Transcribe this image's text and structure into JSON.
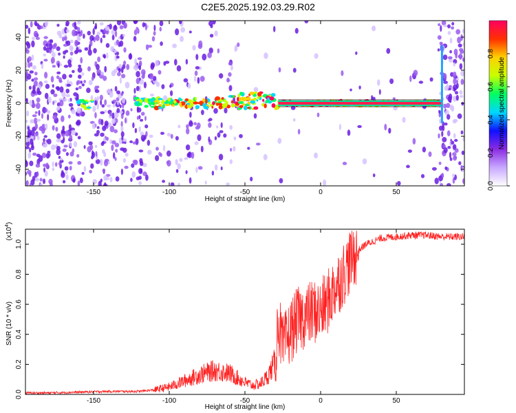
{
  "title": "C2E5.2025.192.03.29.R02",
  "chart_data": [
    {
      "type": "heatmap",
      "xlabel": "Height of straight line (km)",
      "ylabel": "Frequency (Hz)",
      "xlim": [
        -195,
        95
      ],
      "ylim": [
        -50,
        50
      ],
      "x_ticks": [
        -150,
        -100,
        -50,
        0,
        50
      ],
      "y_ticks": [
        -40,
        -20,
        0,
        20,
        40
      ],
      "colorbar": {
        "label": "Normalized spectral amplitude",
        "range": [
          0,
          1
        ],
        "ticks": [
          0.0,
          0.2,
          0.4,
          0.6,
          0.8
        ],
        "tick_labels": [
          "0.0",
          "0.2",
          "0.4",
          "0.6",
          "0.8"
        ],
        "colors": [
          "#ffffff",
          "#c8a8ff",
          "#8a2be2",
          "#1010ff",
          "#00d8ff",
          "#00ff60",
          "#c8ff00",
          "#ffd000",
          "#ff3000",
          "#ff0060"
        ]
      },
      "signal_line": {
        "x_start": -28,
        "x_end": 80,
        "frequency": 0
      },
      "grid": false
    },
    {
      "type": "line",
      "xlabel": "Height of straight line (km)",
      "ylabel": "SNR (10 * v/v)",
      "y_scale_label": "(x10^4)",
      "xlim": [
        -195,
        95
      ],
      "ylim": [
        0,
        1.1
      ],
      "x_ticks": [
        -150,
        -100,
        -50,
        0,
        50
      ],
      "y_ticks": [
        0.0,
        0.2,
        0.4,
        0.6,
        0.8,
        1.0
      ],
      "y_tick_labels": [
        "0.0",
        "0.2",
        "0.4",
        "0.6",
        "0.8",
        "1.0"
      ],
      "line_color": "#ff2020",
      "grid": false,
      "series": [
        {
          "x": [
            -195,
            -180,
            -160,
            -140,
            -120,
            -110,
            -100,
            -90,
            -80,
            -70,
            -60,
            -50,
            -45,
            -40,
            -35,
            -30,
            -28,
            -25,
            -20,
            -15,
            -10,
            -5,
            0,
            5,
            10,
            15,
            20,
            25,
            30,
            40,
            50,
            60,
            70,
            80,
            95
          ],
          "values": [
            0.01,
            0.01,
            0.015,
            0.02,
            0.02,
            0.03,
            0.05,
            0.09,
            0.13,
            0.16,
            0.14,
            0.08,
            0.06,
            0.07,
            0.12,
            0.22,
            0.5,
            0.3,
            0.42,
            0.5,
            0.52,
            0.55,
            0.55,
            0.62,
            0.72,
            0.8,
            0.9,
            0.96,
            1.0,
            1.04,
            1.05,
            1.06,
            1.06,
            1.05,
            1.05
          ]
        }
      ]
    }
  ]
}
